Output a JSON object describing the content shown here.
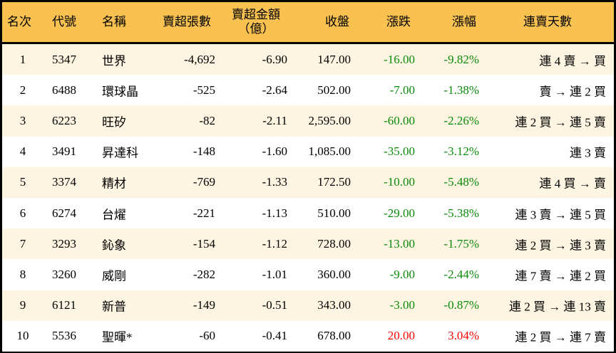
{
  "headers": {
    "rank": "名次",
    "code": "代號",
    "name": "名稱",
    "lots": "賣超張數",
    "amount": "賣超金額",
    "amount_unit": "（億）",
    "close": "收盤",
    "change": "漲跌",
    "pct": "漲幅",
    "streak": "連賣天數"
  },
  "colors": {
    "header_bg": "#F8C150",
    "odd_row_bg": "#FDF5E1",
    "down": "#0A8A0A",
    "up": "#FF0000"
  },
  "rows": [
    {
      "rank": "1",
      "code": "5347",
      "name": "世界",
      "lots": "-4,692",
      "amount": "-6.90",
      "close": "147.00",
      "change": "-16.00",
      "pct": "-9.82%",
      "streak": "連 4 賣 → 買",
      "dir": "down"
    },
    {
      "rank": "2",
      "code": "6488",
      "name": "環球晶",
      "lots": "-525",
      "amount": "-2.64",
      "close": "502.00",
      "change": "-7.00",
      "pct": "-1.38%",
      "streak": "賣 → 連 2 買",
      "dir": "down"
    },
    {
      "rank": "3",
      "code": "6223",
      "name": "旺矽",
      "lots": "-82",
      "amount": "-2.11",
      "close": "2,595.00",
      "change": "-60.00",
      "pct": "-2.26%",
      "streak": "連 2 買 → 連 5 賣",
      "dir": "down"
    },
    {
      "rank": "4",
      "code": "3491",
      "name": "昇達科",
      "lots": "-148",
      "amount": "-1.60",
      "close": "1,085.00",
      "change": "-35.00",
      "pct": "-3.12%",
      "streak": "連 3 賣",
      "dir": "down"
    },
    {
      "rank": "5",
      "code": "3374",
      "name": "精材",
      "lots": "-769",
      "amount": "-1.33",
      "close": "172.50",
      "change": "-10.00",
      "pct": "-5.48%",
      "streak": "連 4 買 → 賣",
      "dir": "down"
    },
    {
      "rank": "6",
      "code": "6274",
      "name": "台燿",
      "lots": "-221",
      "amount": "-1.13",
      "close": "510.00",
      "change": "-29.00",
      "pct": "-5.38%",
      "streak": "連 3 賣 → 連 5 買",
      "dir": "down"
    },
    {
      "rank": "7",
      "code": "3293",
      "name": "鈊象",
      "lots": "-154",
      "amount": "-1.12",
      "close": "728.00",
      "change": "-13.00",
      "pct": "-1.75%",
      "streak": "連 2 買 → 連 3 賣",
      "dir": "down"
    },
    {
      "rank": "8",
      "code": "3260",
      "name": "威剛",
      "lots": "-282",
      "amount": "-1.01",
      "close": "360.00",
      "change": "-9.00",
      "pct": "-2.44%",
      "streak": "連 7 賣 → 連 2 買",
      "dir": "down"
    },
    {
      "rank": "9",
      "code": "6121",
      "name": "新普",
      "lots": "-149",
      "amount": "-0.51",
      "close": "343.00",
      "change": "-3.00",
      "pct": "-0.87%",
      "streak": "連 2 買 → 連 13 賣",
      "dir": "down"
    },
    {
      "rank": "10",
      "code": "5536",
      "name": "聖暉*",
      "lots": "-60",
      "amount": "-0.41",
      "close": "678.00",
      "change": "20.00",
      "pct": "3.04%",
      "streak": "連 2 買 → 連 7 賣",
      "dir": "up"
    }
  ]
}
